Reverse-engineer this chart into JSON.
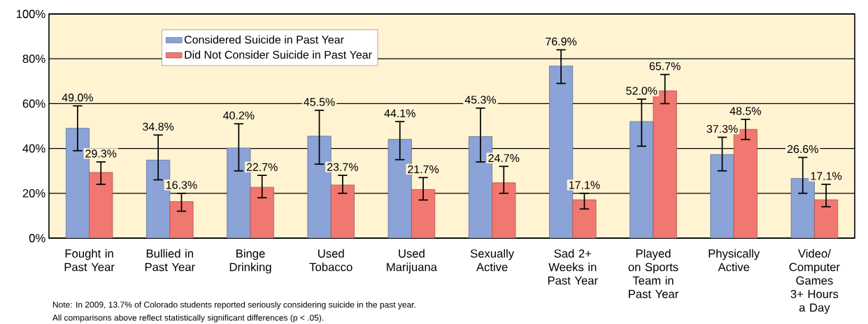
{
  "chart_data": {
    "type": "bar",
    "categories": [
      "Fought in Past Year",
      "Bullied in Past Year",
      "Binge Drinking",
      "Used Tobacco",
      "Used Marijuana",
      "Sexually Active",
      "Sad 2+ Weeks in Past Year",
      "Played on Sports Team in Past Year",
      "Physically Active",
      "Video/ Computer Games 3+ Hours a Day"
    ],
    "series": [
      {
        "name": "Considered Suicide in Past Year",
        "color": "#8ba3d6",
        "values": [
          49.0,
          34.8,
          40.2,
          45.5,
          44.1,
          45.3,
          76.9,
          52.0,
          37.3,
          26.6
        ],
        "value_labels": [
          "49.0%",
          "34.8%",
          "40.2%",
          "45.5%",
          "44.1%",
          "45.3%",
          "76.9%",
          "52.0%",
          "37.3%",
          "26.6%"
        ],
        "errors": [
          [
            39,
            59
          ],
          [
            26,
            46
          ],
          [
            30,
            51
          ],
          [
            33,
            57
          ],
          [
            35,
            52
          ],
          [
            34,
            58
          ],
          [
            69,
            84
          ],
          [
            41,
            62
          ],
          [
            30,
            45
          ],
          [
            20,
            36
          ]
        ]
      },
      {
        "name": "Did Not Consider Suicide in Past Year",
        "color": "#f07870",
        "values": [
          29.3,
          16.3,
          22.7,
          23.7,
          21.7,
          24.7,
          17.1,
          65.7,
          48.5,
          17.1
        ],
        "value_labels": [
          "29.3%",
          "16.3%",
          "22.7%",
          "23.7%",
          "21.7%",
          "24.7%",
          "17.1%",
          "65.7%",
          "48.5%",
          "17.1%"
        ],
        "errors": [
          [
            24,
            34
          ],
          [
            12,
            20
          ],
          [
            18,
            28
          ],
          [
            20,
            28
          ],
          [
            17,
            27
          ],
          [
            20,
            32
          ],
          [
            13,
            20
          ],
          [
            60,
            73
          ],
          [
            44,
            53
          ],
          [
            14,
            24
          ]
        ]
      }
    ],
    "ylim": [
      0,
      100
    ],
    "yticks": [
      {
        "value": 0,
        "label": "0%"
      },
      {
        "value": 20,
        "label": "20%"
      },
      {
        "value": 40,
        "label": "40%"
      },
      {
        "value": 60,
        "label": "60%"
      },
      {
        "value": 80,
        "label": "80%"
      },
      {
        "value": 100,
        "label": "100%"
      }
    ],
    "grid": "y",
    "legend": "top left",
    "annotations": [
      "Note: In 2009, 13.7% of Colorado students reported seriously considering suicide in the past year.",
      "All comparisons above reflect statistically significant differences (p < .05)."
    ]
  }
}
